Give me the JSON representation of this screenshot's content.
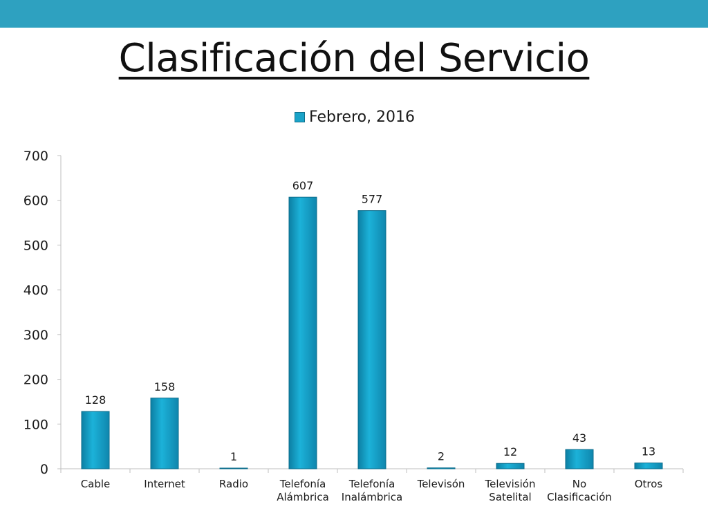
{
  "slide": {
    "title": "Clasificación del Servicio",
    "accent_color": "#2EA1C0"
  },
  "chart_data": {
    "type": "bar",
    "categories": [
      "Cable",
      "Internet",
      "Radio",
      "Telefonía\nAlámbrica",
      "Telefonía\nInalámbrica",
      "Televisón",
      "Televisión\nSatelital",
      "No\nClasificación",
      "Otros"
    ],
    "series": [
      {
        "name": "Febrero, 2016",
        "values": [
          128,
          158,
          1,
          607,
          577,
          2,
          12,
          43,
          13
        ],
        "color": "#1AA3C8"
      }
    ],
    "data_labels": [
      "128",
      "158",
      "1",
      "607",
      "577",
      "2",
      "12",
      "43",
      "13"
    ],
    "ylim": [
      0,
      700
    ],
    "yticks": [
      0,
      100,
      200,
      300,
      400,
      500,
      600,
      700
    ],
    "grid": false,
    "legend": "top-center",
    "title": "",
    "xlabel": "",
    "ylabel": ""
  }
}
